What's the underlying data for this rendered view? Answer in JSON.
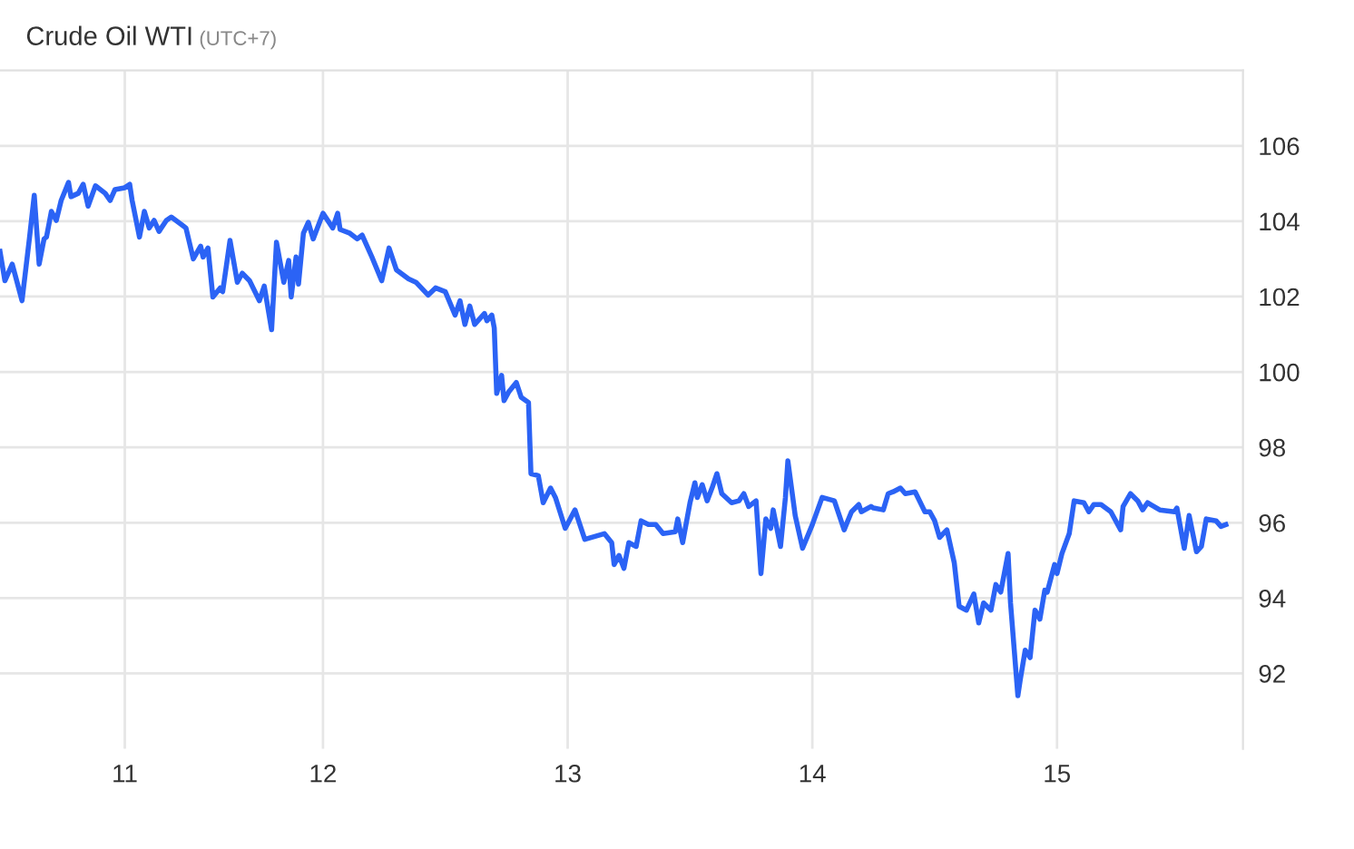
{
  "chart_data": {
    "type": "line",
    "title": "Crude Oil WTI",
    "subtitle": "(UTC+7)",
    "xlim": [
      10.68,
      15.76
    ],
    "ylim": [
      90,
      108
    ],
    "xticks": [
      {
        "value": 11.19,
        "label": "11"
      },
      12,
      13,
      14,
      15
    ],
    "yticks": [
      92,
      94,
      96,
      98,
      100,
      102,
      104,
      106
    ],
    "grid": true,
    "marker": "none",
    "line_style": "solid",
    "series": [
      {
        "color": "#2b63f5",
        "x": [
          10.68,
          10.7,
          10.73,
          10.74,
          10.77,
          10.8,
          10.82,
          10.84,
          10.86,
          10.87,
          10.89,
          10.91,
          10.93,
          10.96,
          10.97,
          11.0,
          11.02,
          11.04,
          11.07,
          11.11,
          11.13,
          11.15,
          11.19,
          11.21,
          11.22,
          11.25,
          11.27,
          11.29,
          11.31,
          11.33,
          11.36,
          11.38,
          11.42,
          11.44,
          11.47,
          11.5,
          11.51,
          11.53,
          11.55,
          11.58,
          11.59,
          11.62,
          11.65,
          11.67,
          11.7,
          11.74,
          11.76,
          11.79,
          11.81,
          11.84,
          11.86,
          11.87,
          11.89,
          11.9,
          11.92,
          11.94,
          11.96,
          12.0,
          12.04,
          12.06,
          12.07,
          12.11,
          12.14,
          12.16,
          12.2,
          12.24,
          12.27,
          12.3,
          12.35,
          12.38,
          12.43,
          12.46,
          12.5,
          12.54,
          12.56,
          12.58,
          12.6,
          12.62,
          12.66,
          12.67,
          12.69,
          12.7,
          12.71,
          12.73,
          12.74,
          12.76,
          12.79,
          12.81,
          12.84,
          12.85,
          12.88,
          12.9,
          12.93,
          12.95,
          12.99,
          13.03,
          13.07,
          13.15,
          13.18,
          13.19,
          13.21,
          13.23,
          13.25,
          13.28,
          13.3,
          13.33,
          13.36,
          13.39,
          13.44,
          13.45,
          13.47,
          13.5,
          13.52,
          13.53,
          13.55,
          13.57,
          13.59,
          13.61,
          13.63,
          13.67,
          13.7,
          13.72,
          13.74,
          13.77,
          13.79,
          13.81,
          13.83,
          13.84,
          13.87,
          13.89,
          13.9,
          13.93,
          13.96,
          14.0,
          14.04,
          14.09,
          14.13,
          14.16,
          14.19,
          14.2,
          14.24,
          14.25,
          14.29,
          14.31,
          14.33,
          14.36,
          14.38,
          14.42,
          14.46,
          14.48,
          14.5,
          14.52,
          14.55,
          14.58,
          14.6,
          14.63,
          14.66,
          14.68,
          14.7,
          14.73,
          14.75,
          14.77,
          14.8,
          14.81,
          14.84,
          14.85,
          14.87,
          14.89,
          14.91,
          14.93,
          14.95,
          14.96,
          14.99,
          15.0,
          15.02,
          15.05,
          15.07,
          15.11,
          15.13,
          15.15,
          15.18,
          15.22,
          15.26,
          15.27,
          15.3,
          15.33,
          15.35,
          15.37,
          15.42,
          15.48,
          15.49,
          15.52,
          15.54,
          15.57,
          15.59,
          15.61,
          15.65,
          15.67,
          15.69
        ],
        "values": [
          103.2,
          102.42,
          102.86,
          102.62,
          101.89,
          103.53,
          104.69,
          102.86,
          103.53,
          103.58,
          104.26,
          104.02,
          104.55,
          105.03,
          104.65,
          104.74,
          104.98,
          104.4,
          104.94,
          104.74,
          104.55,
          104.84,
          104.89,
          104.98,
          104.55,
          103.58,
          104.26,
          103.82,
          104.02,
          103.73,
          104.02,
          104.11,
          103.92,
          103.82,
          103.0,
          103.34,
          103.05,
          103.29,
          101.99,
          102.23,
          102.13,
          103.49,
          102.38,
          102.62,
          102.42,
          101.89,
          102.28,
          101.12,
          103.44,
          102.38,
          102.96,
          101.99,
          103.05,
          102.33,
          103.68,
          103.97,
          103.53,
          104.21,
          103.82,
          104.21,
          103.78,
          103.68,
          103.53,
          103.63,
          103.05,
          102.42,
          103.29,
          102.71,
          102.47,
          102.38,
          102.04,
          102.23,
          102.13,
          101.51,
          101.89,
          101.26,
          101.75,
          101.26,
          101.55,
          101.36,
          101.51,
          101.17,
          99.43,
          99.91,
          99.24,
          99.48,
          99.72,
          99.33,
          99.19,
          97.3,
          97.25,
          96.53,
          96.92,
          96.67,
          95.85,
          96.34,
          95.56,
          95.71,
          95.47,
          94.89,
          95.13,
          94.79,
          95.47,
          95.37,
          96.05,
          95.95,
          95.95,
          95.71,
          95.76,
          96.1,
          95.47,
          96.53,
          97.06,
          96.67,
          97.01,
          96.58,
          96.92,
          97.3,
          96.77,
          96.53,
          96.58,
          96.77,
          96.43,
          96.58,
          94.65,
          96.1,
          95.85,
          96.34,
          95.37,
          96.67,
          97.64,
          96.19,
          95.32,
          95.95,
          96.67,
          96.58,
          95.81,
          96.29,
          96.48,
          96.29,
          96.43,
          96.39,
          96.34,
          96.77,
          96.82,
          96.92,
          96.77,
          96.82,
          96.29,
          96.29,
          96.05,
          95.61,
          95.81,
          94.94,
          93.78,
          93.68,
          94.11,
          93.34,
          93.87,
          93.68,
          94.36,
          94.16,
          95.18,
          93.87,
          91.41,
          91.84,
          92.62,
          92.42,
          93.68,
          93.44,
          94.21,
          94.16,
          94.89,
          94.65,
          95.18,
          95.71,
          96.58,
          96.53,
          96.29,
          96.48,
          96.48,
          96.29,
          95.81,
          96.43,
          96.77,
          96.58,
          96.34,
          96.53,
          96.34,
          96.29,
          96.39,
          95.32,
          96.19,
          95.23,
          95.37,
          96.1,
          96.05,
          95.9,
          95.95
        ]
      }
    ]
  }
}
